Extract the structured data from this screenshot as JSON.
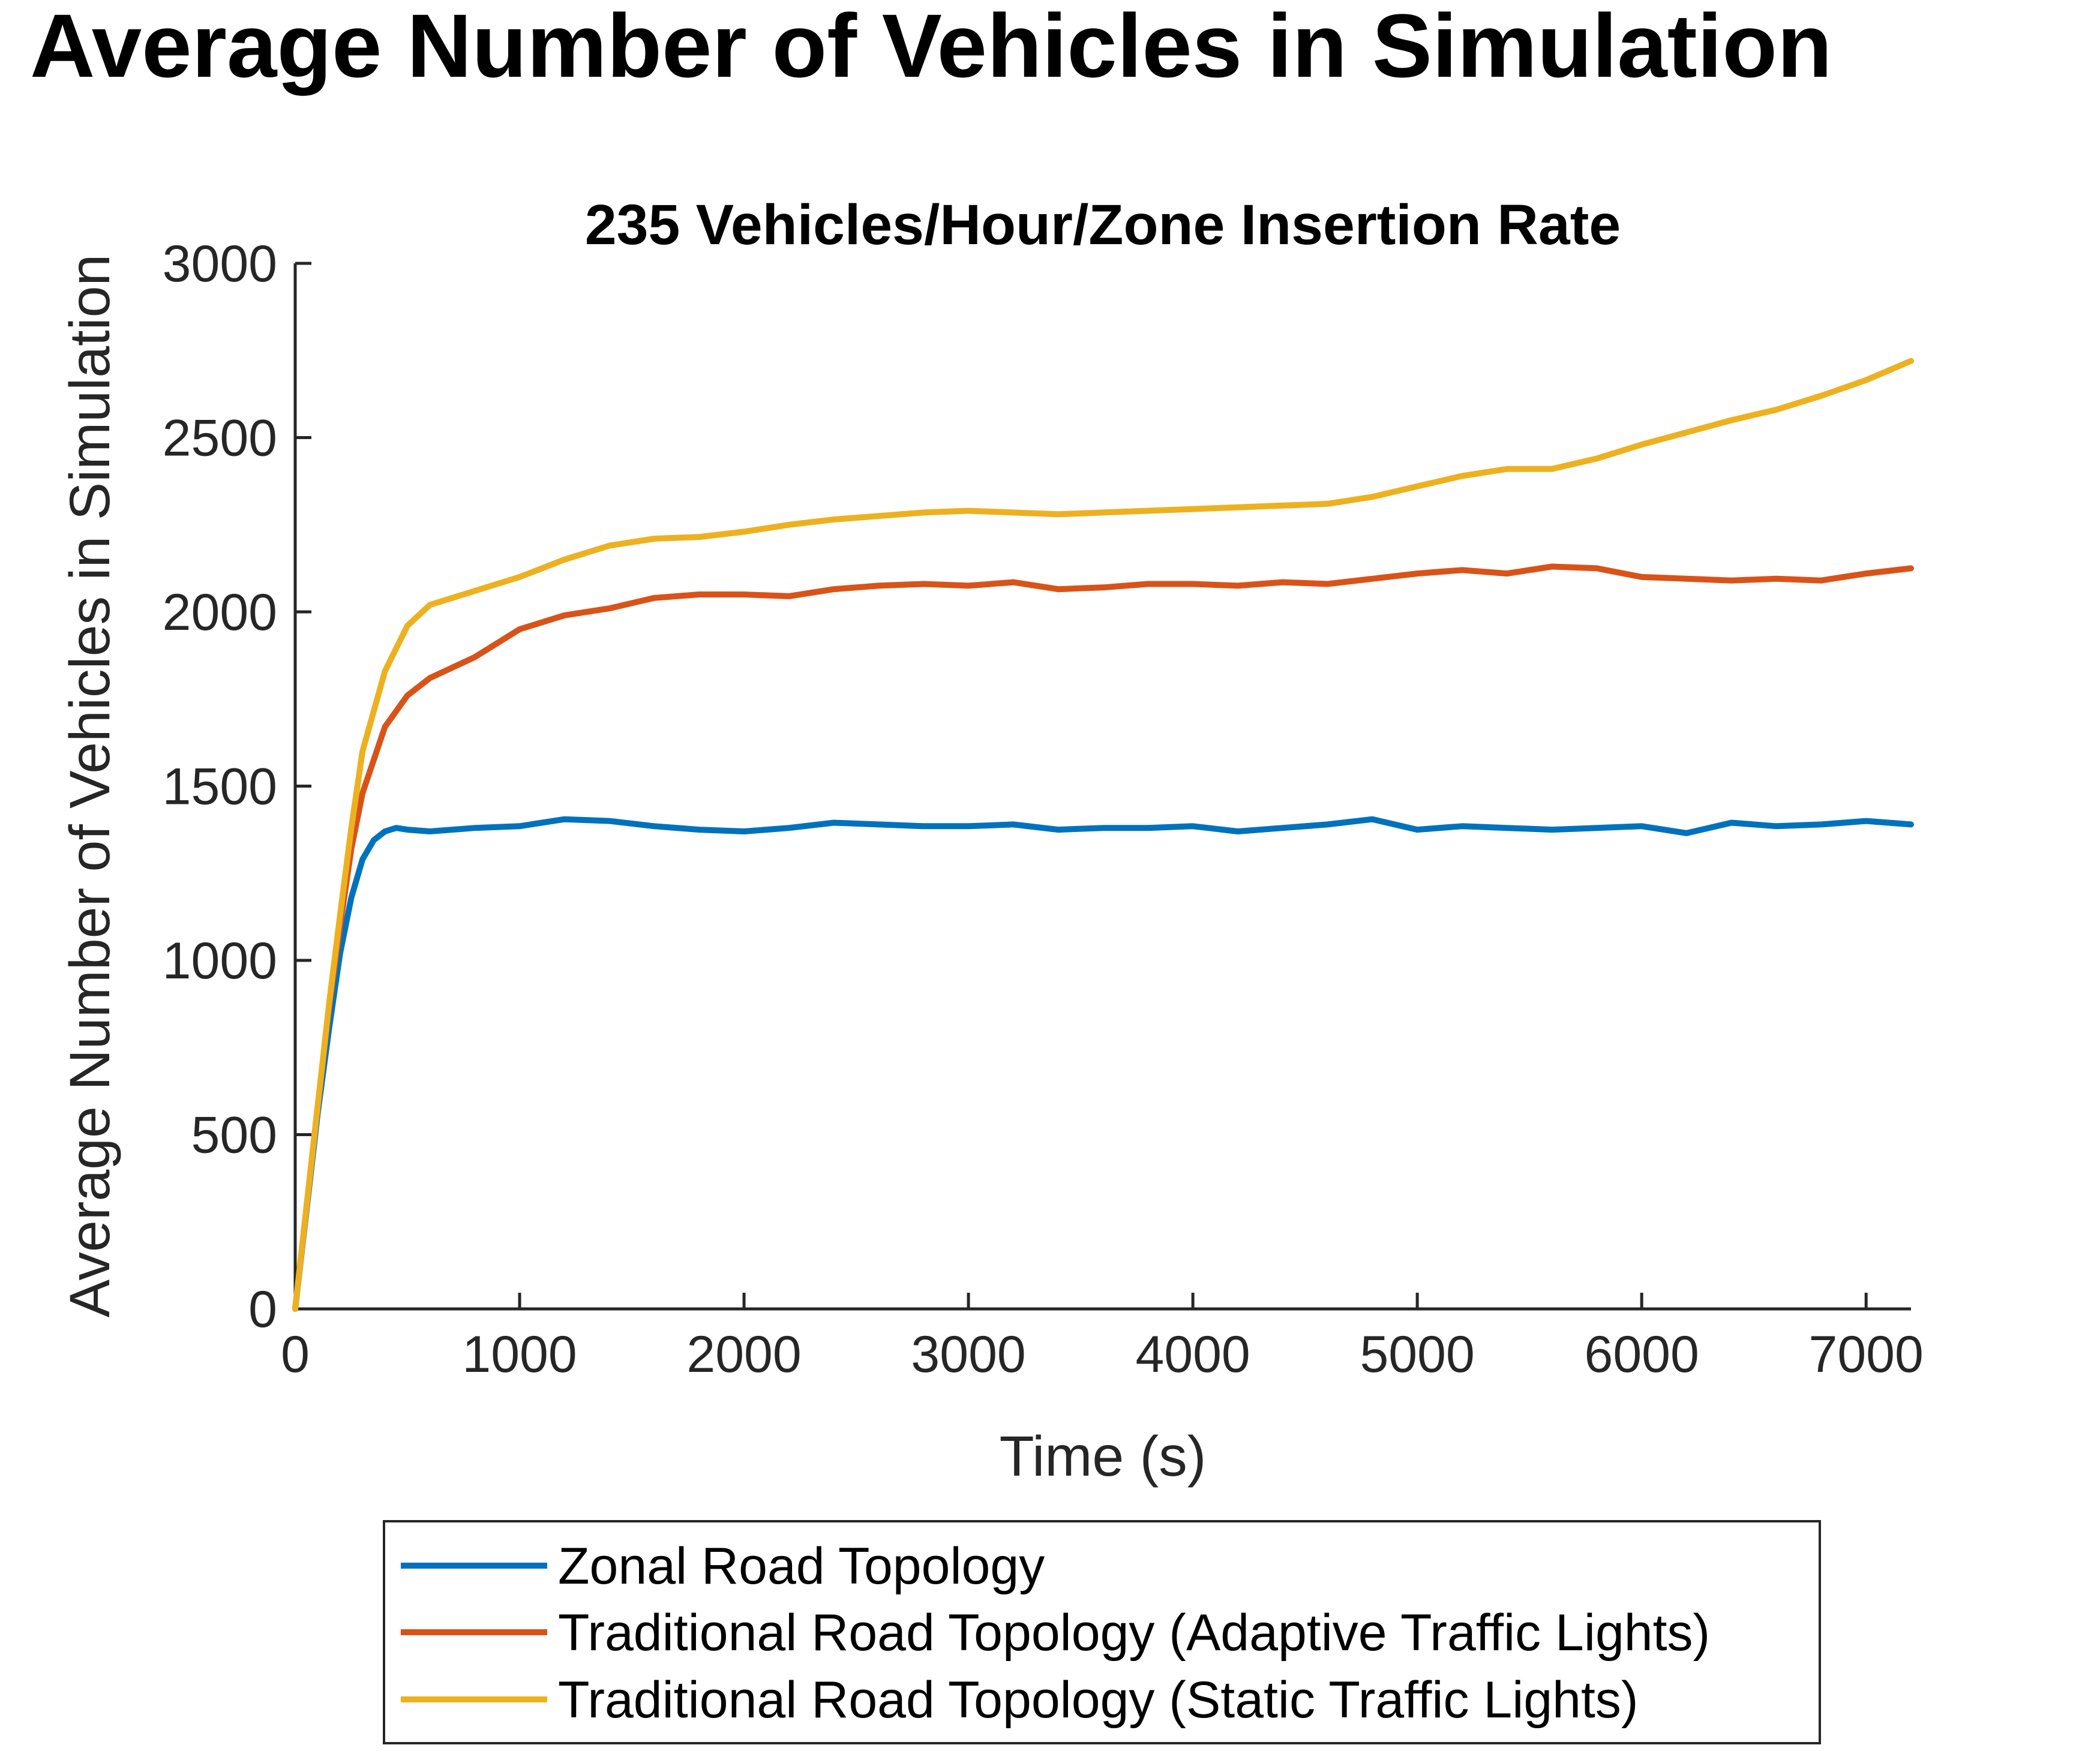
{
  "page_title": "Average Number of Vehicles in Simulation",
  "chart_data": {
    "type": "line",
    "title": "235 Vehicles/Hour/Zone Insertion Rate",
    "xlabel": "Time (s)",
    "ylabel": "Average Number of Vehicles in Simulation",
    "xlim": [
      0,
      7200
    ],
    "ylim": [
      0,
      3000
    ],
    "xticks": [
      0,
      1000,
      2000,
      3000,
      4000,
      5000,
      6000,
      7000
    ],
    "yticks": [
      0,
      500,
      1000,
      1500,
      2000,
      2500,
      3000
    ],
    "legend_position": "bottom-outside",
    "series": [
      {
        "name": "Zonal Road Topology",
        "color": "#0072BD",
        "x": [
          0,
          50,
          100,
          150,
          200,
          250,
          300,
          350,
          400,
          450,
          500,
          600,
          800,
          1000,
          1200,
          1400,
          1600,
          1800,
          2000,
          2200,
          2400,
          2600,
          2800,
          3000,
          3200,
          3400,
          3600,
          3800,
          4000,
          4200,
          4400,
          4600,
          4800,
          5000,
          5200,
          5400,
          5600,
          5800,
          6000,
          6200,
          6400,
          6600,
          6800,
          7000,
          7200
        ],
        "values": [
          0,
          280,
          560,
          800,
          1020,
          1180,
          1290,
          1345,
          1370,
          1380,
          1375,
          1370,
          1380,
          1385,
          1405,
          1400,
          1385,
          1375,
          1370,
          1380,
          1395,
          1390,
          1385,
          1385,
          1390,
          1375,
          1380,
          1380,
          1385,
          1370,
          1380,
          1390,
          1405,
          1375,
          1385,
          1380,
          1375,
          1380,
          1385,
          1365,
          1395,
          1385,
          1390,
          1400,
          1390
        ]
      },
      {
        "name": "Traditional Road Topology (Adaptive Traffic Lights)",
        "color": "#D95319",
        "x": [
          0,
          50,
          100,
          150,
          200,
          250,
          300,
          400,
          500,
          600,
          800,
          1000,
          1200,
          1400,
          1600,
          1800,
          2000,
          2200,
          2400,
          2600,
          2800,
          3000,
          3200,
          3400,
          3600,
          3800,
          4000,
          4200,
          4400,
          4600,
          4800,
          5000,
          5200,
          5400,
          5600,
          5800,
          6000,
          6200,
          6400,
          6600,
          6800,
          7000,
          7200
        ],
        "values": [
          0,
          290,
          580,
          860,
          1100,
          1320,
          1480,
          1670,
          1760,
          1810,
          1870,
          1950,
          1990,
          2010,
          2040,
          2050,
          2050,
          2045,
          2065,
          2075,
          2080,
          2075,
          2085,
          2065,
          2070,
          2080,
          2080,
          2075,
          2085,
          2080,
          2095,
          2110,
          2120,
          2110,
          2130,
          2125,
          2100,
          2095,
          2090,
          2095,
          2090,
          2110,
          2125
        ]
      },
      {
        "name": "Traditional Road Topology (Static Traffic Lights)",
        "color": "#EDB120",
        "x": [
          0,
          50,
          100,
          150,
          200,
          250,
          300,
          400,
          500,
          600,
          800,
          1000,
          1200,
          1400,
          1600,
          1800,
          2000,
          2200,
          2400,
          2600,
          2800,
          3000,
          3200,
          3400,
          3600,
          3800,
          4000,
          4200,
          4400,
          4600,
          4800,
          5000,
          5200,
          5400,
          5600,
          5800,
          6000,
          6200,
          6400,
          6600,
          6800,
          7000,
          7200
        ],
        "values": [
          0,
          290,
          580,
          870,
          1130,
          1380,
          1600,
          1830,
          1960,
          2020,
          2060,
          2100,
          2150,
          2190,
          2210,
          2215,
          2230,
          2250,
          2265,
          2275,
          2285,
          2290,
          2285,
          2280,
          2285,
          2290,
          2295,
          2300,
          2305,
          2310,
          2330,
          2360,
          2390,
          2410,
          2410,
          2440,
          2480,
          2515,
          2550,
          2580,
          2620,
          2665,
          2720
        ]
      }
    ]
  }
}
